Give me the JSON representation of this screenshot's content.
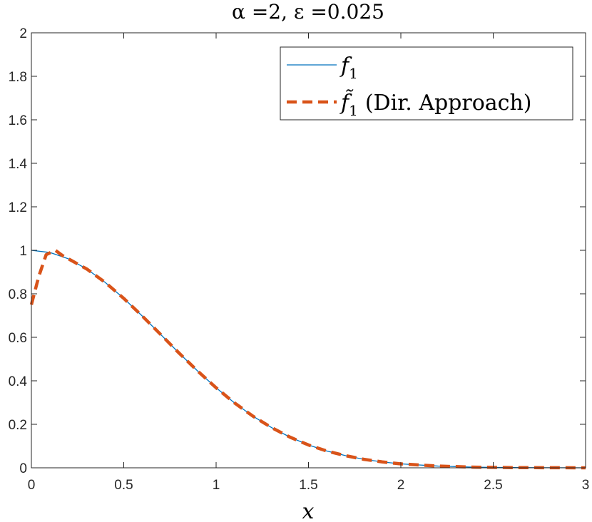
{
  "chart_data": {
    "type": "line",
    "title": "α =2, ε =0.025",
    "xlabel": "x",
    "ylabel": "",
    "xlim": [
      0,
      3
    ],
    "ylim": [
      0,
      2
    ],
    "x_ticks": [
      "0",
      "0.5",
      "1",
      "1.5",
      "2",
      "2.5",
      "3"
    ],
    "y_ticks": [
      "0",
      "0.2",
      "0.4",
      "0.6",
      "0.8",
      "1",
      "1.2",
      "1.4",
      "1.6",
      "1.8",
      "2"
    ],
    "grid": false,
    "legend_position": "top-right",
    "series": [
      {
        "name": "f_1",
        "style": "solid",
        "color": "#0072BD",
        "x": [
          0,
          0.1,
          0.2,
          0.3,
          0.4,
          0.5,
          0.6,
          0.7,
          0.8,
          0.9,
          1.0,
          1.1,
          1.2,
          1.3,
          1.4,
          1.5,
          1.6,
          1.7,
          1.8,
          1.9,
          2.0,
          2.2,
          2.4,
          2.6,
          2.8,
          3.0
        ],
        "y": [
          1.0,
          0.99,
          0.961,
          0.914,
          0.852,
          0.779,
          0.698,
          0.613,
          0.527,
          0.445,
          0.368,
          0.298,
          0.237,
          0.185,
          0.141,
          0.105,
          0.077,
          0.056,
          0.039,
          0.027,
          0.018,
          0.008,
          0.003,
          0.001,
          0.0004,
          0.0001
        ]
      },
      {
        "name": "f̃_1 (Dir. Approach)",
        "style": "dashed",
        "color": "#D95319",
        "x": [
          0,
          0.04,
          0.08,
          0.13,
          0.17,
          0.2,
          0.3,
          0.4,
          0.5,
          0.6,
          0.7,
          0.8,
          0.9,
          1.0,
          1.1,
          1.2,
          1.3,
          1.4,
          1.5,
          1.6,
          1.7,
          1.8,
          1.9,
          2.0,
          2.2,
          2.4,
          2.6,
          2.8,
          3.0
        ],
        "y": [
          0.75,
          0.88,
          0.98,
          1.0,
          0.975,
          0.961,
          0.914,
          0.852,
          0.779,
          0.698,
          0.613,
          0.527,
          0.445,
          0.368,
          0.298,
          0.237,
          0.185,
          0.141,
          0.105,
          0.077,
          0.056,
          0.039,
          0.027,
          0.018,
          0.008,
          0.003,
          0.001,
          0.0004,
          0.0001
        ]
      }
    ]
  },
  "legend": {
    "entry1_base": "f",
    "entry1_sub": "1",
    "entry2_base": "f̃",
    "entry2_sub": "1",
    "entry2_suffix": "(Dir. Approach)"
  }
}
